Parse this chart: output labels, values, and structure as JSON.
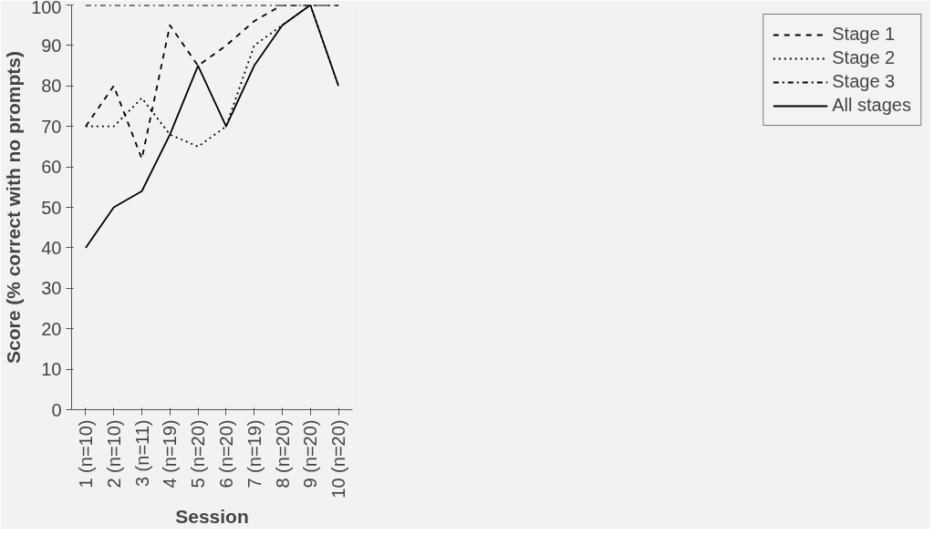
{
  "chart_data": {
    "type": "line",
    "xlabel": "Session",
    "ylabel": "Score (% correct with no prompts)",
    "categories": [
      "1 (n=10)",
      "2 (n=10)",
      "3 (n=11)",
      "4 (n=19)",
      "5 (n=20)",
      "6 (n=20)",
      "7 (n=19)",
      "8 (n=20)",
      "9 (n=20)",
      "10 (n=20)"
    ],
    "ylim": [
      0,
      100
    ],
    "yticks": [
      0,
      10,
      20,
      30,
      40,
      50,
      60,
      70,
      80,
      90,
      100
    ],
    "grid": false,
    "legend": "right",
    "marker": "none",
    "series": [
      {
        "name": "Stage 1",
        "color": "#000000",
        "line_style": "dashed",
        "values": [
          70,
          80,
          62,
          95,
          85,
          90,
          96,
          100,
          100,
          100
        ]
      },
      {
        "name": "Stage 2",
        "color": "#000000",
        "line_style": "dotted",
        "values": [
          70,
          70,
          77,
          68,
          65,
          70,
          90,
          95,
          100,
          80
        ]
      },
      {
        "name": "Stage 3",
        "color": "#000000",
        "line_style": "dashdot",
        "values": [
          100,
          100,
          100,
          100,
          100,
          100,
          100,
          100,
          100,
          100
        ]
      },
      {
        "name": "All stages",
        "color": "#000000",
        "line_style": "solid",
        "values": [
          40,
          50,
          54,
          68,
          85,
          70,
          85,
          95,
          100,
          80
        ]
      }
    ]
  }
}
